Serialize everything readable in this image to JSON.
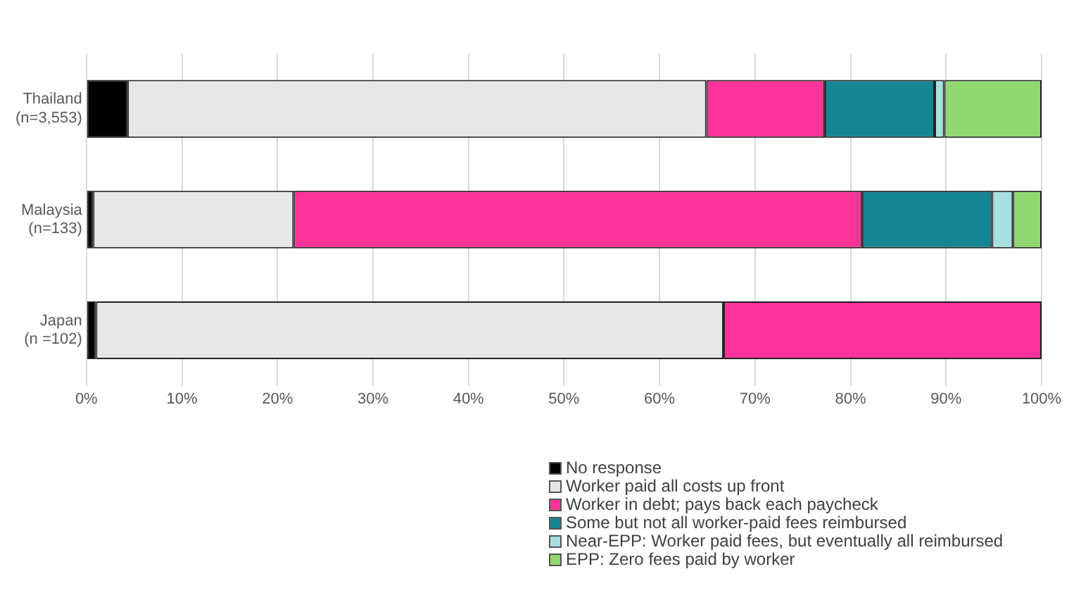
{
  "chart_data": {
    "type": "bar",
    "orientation": "horizontal",
    "stacked": true,
    "categories": [
      "Thailand (n=3,553)",
      "Malaysia (n=133)",
      "Japan (n =102)"
    ],
    "series": [
      {
        "name": "No response",
        "color": "#000000",
        "values": [
          4.3,
          0.7,
          1.0
        ]
      },
      {
        "name": "Worker paid all costs up front",
        "color": "#e7e7e7",
        "values": [
          60.6,
          21.0,
          65.7
        ]
      },
      {
        "name": "Worker in debt; pays back each paycheck",
        "color": "#ff3399",
        "values": [
          12.4,
          59.5,
          33.3
        ]
      },
      {
        "name": "Some but not all worker-paid fees reimbursed",
        "color": "#158593",
        "values": [
          11.5,
          13.6,
          0
        ]
      },
      {
        "name": "Near-EPP: Worker paid fees, but eventually all reimbursed",
        "color": "#a8dfe0",
        "values": [
          1.0,
          2.2,
          0
        ]
      },
      {
        "name": "EPP: Zero fees paid by worker",
        "color": "#8fd970",
        "values": [
          10.2,
          3.0,
          0
        ]
      }
    ],
    "xlim": [
      0,
      100
    ],
    "xticks": [
      {
        "value": 0,
        "label": "0%"
      },
      {
        "value": 10,
        "label": "10%"
      },
      {
        "value": 20,
        "label": "20%"
      },
      {
        "value": 30,
        "label": "30%"
      },
      {
        "value": 40,
        "label": "40%"
      },
      {
        "value": 50,
        "label": "50%"
      },
      {
        "value": 60,
        "label": "60%"
      },
      {
        "value": 70,
        "label": "70%"
      },
      {
        "value": 80,
        "label": "80%"
      },
      {
        "value": 90,
        "label": "90%"
      },
      {
        "value": 100,
        "label": "100%"
      }
    ],
    "grid": "x",
    "legend": "bottom"
  }
}
